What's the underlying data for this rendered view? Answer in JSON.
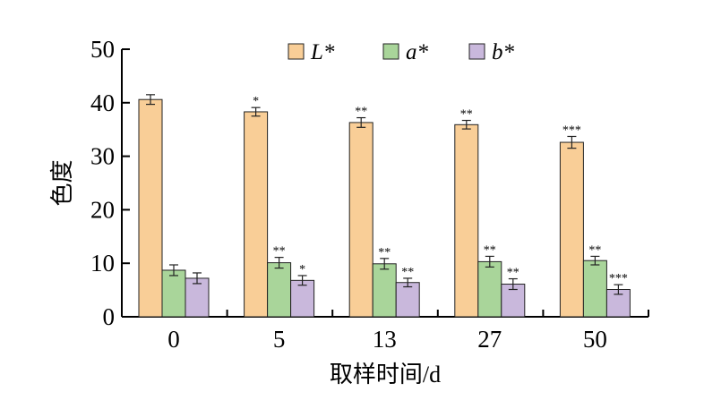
{
  "chart_data": {
    "type": "bar",
    "xlabel": "取样时间/d",
    "ylabel": "色度",
    "ylim": [
      0,
      50
    ],
    "yticks": [
      0,
      10,
      20,
      30,
      40,
      50
    ],
    "categories": [
      "0",
      "5",
      "13",
      "27",
      "50"
    ],
    "legend_position": "top",
    "series": [
      {
        "name": "L*",
        "color": "#F9CE97",
        "values": [
          40.6,
          38.3,
          36.3,
          35.9,
          32.6
        ],
        "errors": [
          0.9,
          0.8,
          0.9,
          0.8,
          1.1
        ],
        "significance": [
          "",
          "*",
          "**",
          "**",
          "***"
        ]
      },
      {
        "name": "a*",
        "color": "#A9D59A",
        "values": [
          8.7,
          10.1,
          9.9,
          10.3,
          10.5
        ],
        "errors": [
          1.0,
          1.0,
          1.0,
          1.0,
          0.8
        ],
        "significance": [
          "",
          "**",
          "**",
          "**",
          "**"
        ]
      },
      {
        "name": "b*",
        "color": "#C9B8DC",
        "values": [
          7.2,
          6.8,
          6.4,
          6.1,
          5.1
        ],
        "errors": [
          1.0,
          0.9,
          0.8,
          1.0,
          0.9
        ],
        "significance": [
          "",
          "*",
          "**",
          "**",
          "***"
        ]
      }
    ]
  }
}
